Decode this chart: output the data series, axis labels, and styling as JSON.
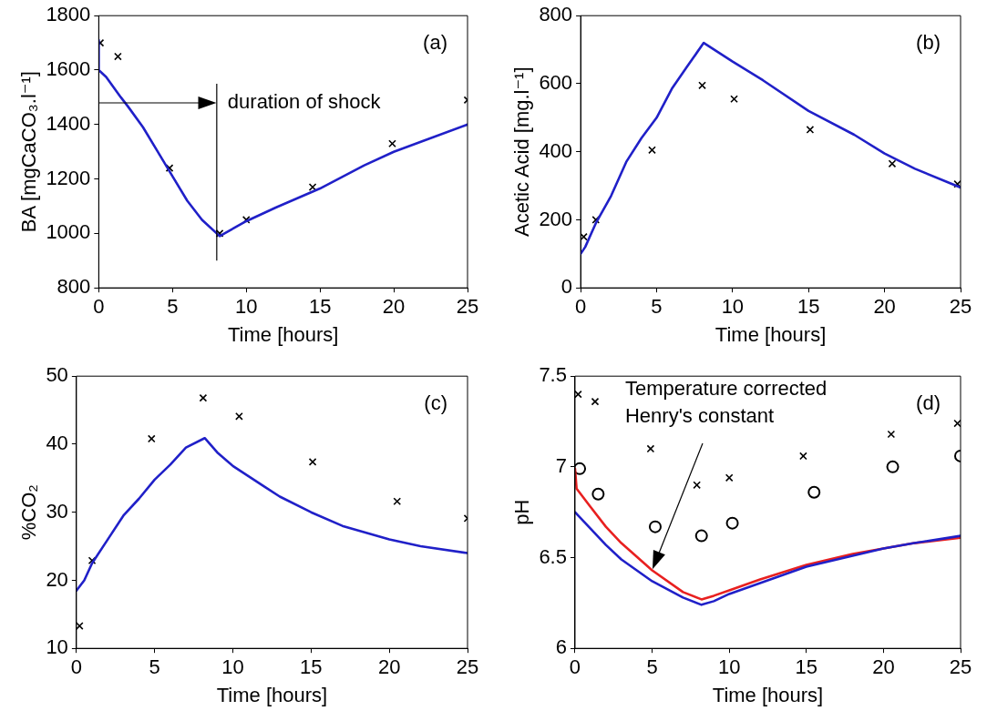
{
  "chart_data": [
    {
      "type": "line",
      "ylabel": "BA [mgCaCO₃.l⁻¹]",
      "xlabel": "Time [hours]",
      "xlim": [
        0,
        25
      ],
      "xticks": [
        0,
        5,
        10,
        15,
        20,
        25
      ],
      "ylim": [
        800,
        1800
      ],
      "yticks": [
        800,
        1000,
        1200,
        1400,
        1600,
        1800
      ],
      "grid": false,
      "legend": false,
      "annotations": [
        "(a)"
      ],
      "ref_lines": [
        {
          "axis": "x",
          "value": 8,
          "label": "duration of shock",
          "color": "#000000"
        }
      ],
      "series": [
        {
          "type": "line",
          "color": "#2020c8",
          "line_style": "solid",
          "marker": "none",
          "x": [
            0,
            0,
            0.5,
            1.5,
            2,
            3,
            4,
            5,
            6,
            7,
            8.2,
            10,
            12,
            15,
            18,
            20,
            22,
            25
          ],
          "values": [
            1710,
            1600,
            1575,
            1500,
            1465,
            1390,
            1300,
            1210,
            1120,
            1050,
            990,
            1045,
            1095,
            1165,
            1250,
            1300,
            1340,
            1400
          ]
        },
        {
          "type": "scatter",
          "color": "#000000",
          "marker": "cross",
          "x": [
            0.1,
            1.3,
            4.8,
            8.2,
            10,
            14.5,
            19.9,
            25
          ],
          "values": [
            1700,
            1650,
            1240,
            1000,
            1050,
            1170,
            1330,
            1490
          ]
        }
      ]
    },
    {
      "type": "line",
      "ylabel": "Acetic Acid [mg.l⁻¹]",
      "xlabel": "Time [hours]",
      "xlim": [
        0,
        25
      ],
      "xticks": [
        0,
        5,
        10,
        15,
        20,
        25
      ],
      "ylim": [
        0,
        800
      ],
      "yticks": [
        0,
        200,
        400,
        600,
        800
      ],
      "grid": false,
      "legend": false,
      "annotations": [
        "(b)"
      ],
      "series": [
        {
          "type": "line",
          "color": "#2020c8",
          "line_style": "solid",
          "marker": "none",
          "x": [
            0,
            0.3,
            1,
            2,
            3,
            4,
            5,
            6,
            7,
            8.1,
            10,
            12,
            15,
            18,
            20,
            22,
            25
          ],
          "values": [
            100,
            120,
            190,
            270,
            370,
            440,
            500,
            585,
            650,
            720,
            665,
            610,
            520,
            450,
            395,
            350,
            295
          ]
        },
        {
          "type": "scatter",
          "color": "#000000",
          "marker": "cross",
          "x": [
            0.2,
            1,
            4.7,
            8,
            10.1,
            15.1,
            20.5,
            24.8
          ],
          "values": [
            150,
            200,
            405,
            595,
            555,
            465,
            365,
            305
          ]
        }
      ]
    },
    {
      "type": "line",
      "ylabel": "%CO₂",
      "xlabel": "Time [hours]",
      "xlim": [
        0,
        25
      ],
      "xticks": [
        0,
        5,
        10,
        15,
        20,
        25
      ],
      "ylim": [
        10,
        50
      ],
      "yticks": [
        10,
        20,
        30,
        40,
        50
      ],
      "grid": false,
      "legend": false,
      "annotations": [
        "(c)"
      ],
      "series": [
        {
          "type": "line",
          "color": "#2020c8",
          "line_style": "solid",
          "marker": "none",
          "x": [
            0,
            0.5,
            1,
            2,
            3,
            4,
            5,
            6,
            7,
            8.2,
            9,
            10,
            11,
            12,
            13,
            15,
            17,
            20,
            22,
            25
          ],
          "values": [
            18.5,
            20,
            22.5,
            26,
            29.5,
            32,
            34.8,
            37,
            39.5,
            40.9,
            38.8,
            36.8,
            35.3,
            33.8,
            32.3,
            30,
            28,
            26,
            25,
            24
          ]
        },
        {
          "type": "scatter",
          "color": "#000000",
          "marker": "cross",
          "x": [
            0.2,
            1,
            4.8,
            8.1,
            10.4,
            15.1,
            20.5,
            25
          ],
          "values": [
            13.3,
            22.9,
            40.8,
            46.8,
            44.1,
            37.4,
            31.6,
            29.1
          ]
        }
      ]
    },
    {
      "type": "line",
      "ylabel": "pH",
      "xlabel": "Time [hours]",
      "xlim": [
        0,
        25
      ],
      "xticks": [
        0,
        5,
        10,
        15,
        20,
        25
      ],
      "ylim": [
        6,
        7.5
      ],
      "yticks": [
        6,
        6.5,
        7,
        7.5
      ],
      "grid": false,
      "legend": false,
      "annotations": [
        "(d)",
        "Temperature corrected\nHenry's constant"
      ],
      "series": [
        {
          "type": "line",
          "color": "#2020c8",
          "line_style": "solid",
          "marker": "none",
          "x": [
            0,
            1,
            2,
            3,
            5,
            7,
            8.2,
            9,
            10,
            12,
            15,
            18,
            20,
            22,
            25
          ],
          "values": [
            6.75,
            6.66,
            6.57,
            6.49,
            6.37,
            6.28,
            6.24,
            6.26,
            6.3,
            6.36,
            6.45,
            6.51,
            6.55,
            6.58,
            6.62
          ]
        },
        {
          "type": "line",
          "color": "#e82020",
          "line_style": "solid",
          "marker": "none",
          "x": [
            0,
            0.1,
            1,
            2,
            3,
            5,
            7,
            8.2,
            9,
            10,
            12,
            15,
            18,
            20,
            22,
            25
          ],
          "values": [
            6.99,
            6.88,
            6.78,
            6.67,
            6.58,
            6.43,
            6.31,
            6.27,
            6.29,
            6.32,
            6.38,
            6.46,
            6.52,
            6.55,
            6.58,
            6.61
          ]
        },
        {
          "type": "scatter",
          "color": "#000000",
          "marker": "cross",
          "x": [
            0.2,
            1.3,
            4.9,
            7.9,
            10,
            14.8,
            20.5,
            24.8
          ],
          "values": [
            7.4,
            7.36,
            7.1,
            6.9,
            6.94,
            7.06,
            7.18,
            7.24
          ]
        },
        {
          "type": "scatter",
          "color": "#000000",
          "marker": "circle",
          "x": [
            0.3,
            1.5,
            5.2,
            8.2,
            10.2,
            15.5,
            20.6,
            25
          ],
          "values": [
            6.99,
            6.85,
            6.67,
            6.62,
            6.69,
            6.86,
            7,
            7.06
          ]
        }
      ]
    }
  ]
}
